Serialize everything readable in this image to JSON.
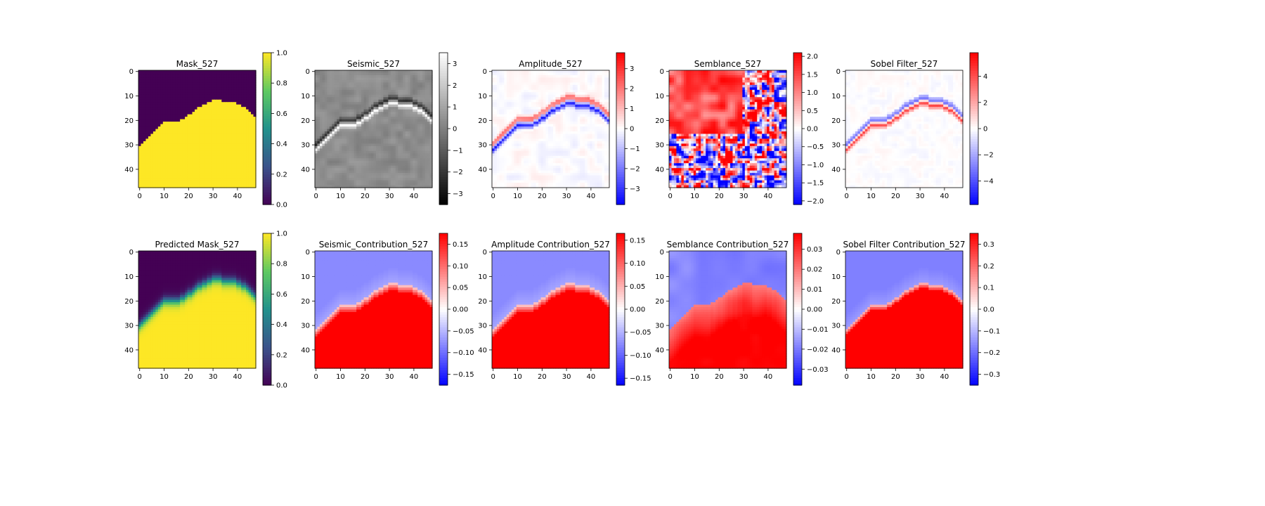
{
  "chart_data": [
    {
      "type": "heatmap",
      "title": "Mask_527",
      "colormap": "viridis",
      "xlim": [
        0,
        47
      ],
      "ylim": [
        0,
        47
      ],
      "xticks": [
        "0",
        "10",
        "20",
        "30",
        "40"
      ],
      "yticks": [
        "0",
        "10",
        "20",
        "30",
        "40"
      ],
      "colorbar": {
        "range": [
          0,
          1
        ],
        "ticks": [
          "0.0",
          "0.2",
          "0.4",
          "0.6",
          "0.8",
          "1.0"
        ]
      },
      "boundary_rows": [
        31,
        30,
        29,
        28,
        27,
        26,
        25,
        24,
        23,
        22,
        21,
        21,
        21,
        21,
        21,
        21,
        21,
        20,
        20,
        19,
        18,
        18,
        17,
        16,
        15,
        15,
        14,
        14,
        13,
        13,
        12,
        12,
        12,
        12,
        13,
        13,
        13,
        13,
        13,
        13,
        14,
        14,
        15,
        15,
        16,
        17,
        18,
        19
      ]
    },
    {
      "type": "heatmap",
      "title": "Seismic_527",
      "colormap": "gray",
      "xlim": [
        0,
        47
      ],
      "ylim": [
        0,
        47
      ],
      "xticks": [
        "0",
        "10",
        "20",
        "30",
        "40"
      ],
      "yticks": [
        "0",
        "10",
        "20",
        "30",
        "40"
      ],
      "colorbar": {
        "range": [
          -3.5,
          3.5
        ],
        "ticks": [
          "−3",
          "−2",
          "−1",
          "0",
          "1",
          "2",
          "3"
        ]
      }
    },
    {
      "type": "heatmap",
      "title": "Amplitude_527",
      "colormap": "bwr",
      "xlim": [
        0,
        47
      ],
      "ylim": [
        0,
        47
      ],
      "xticks": [
        "0",
        "10",
        "20",
        "30",
        "40"
      ],
      "yticks": [
        "0",
        "10",
        "20",
        "30",
        "40"
      ],
      "colorbar": {
        "range": [
          -3.8,
          3.8
        ],
        "ticks": [
          "−3",
          "−2",
          "−1",
          "0",
          "1",
          "2",
          "3"
        ]
      }
    },
    {
      "type": "heatmap",
      "title": "Semblance_527",
      "colormap": "bwr",
      "xlim": [
        0,
        47
      ],
      "ylim": [
        0,
        47
      ],
      "xticks": [
        "0",
        "10",
        "20",
        "30",
        "40"
      ],
      "yticks": [
        "0",
        "10",
        "20",
        "30",
        "40"
      ],
      "colorbar": {
        "range": [
          -2.1,
          2.1
        ],
        "ticks": [
          "−2.0",
          "−1.5",
          "−1.0",
          "−0.5",
          "0.0",
          "0.5",
          "1.0",
          "1.5",
          "2.0"
        ]
      }
    },
    {
      "type": "heatmap",
      "title": "Sobel Filter_527",
      "colormap": "bwr",
      "xlim": [
        0,
        47
      ],
      "ylim": [
        0,
        47
      ],
      "xticks": [
        "0",
        "10",
        "20",
        "30",
        "40"
      ],
      "yticks": [
        "0",
        "10",
        "20",
        "30",
        "40"
      ],
      "colorbar": {
        "range": [
          -5.8,
          5.8
        ],
        "ticks": [
          "−4",
          "−2",
          "0",
          "2",
          "4"
        ]
      }
    },
    {
      "type": "heatmap",
      "title": "Predicted Mask_527",
      "colormap": "viridis",
      "xlim": [
        0,
        47
      ],
      "ylim": [
        0,
        47
      ],
      "xticks": [
        "0",
        "10",
        "20",
        "30",
        "40"
      ],
      "yticks": [
        "0",
        "10",
        "20",
        "30",
        "40"
      ],
      "colorbar": {
        "range": [
          0,
          1
        ],
        "ticks": [
          "0.0",
          "0.2",
          "0.4",
          "0.6",
          "0.8",
          "1.0"
        ]
      }
    },
    {
      "type": "heatmap",
      "title": "Seismic_Contribution_527",
      "colormap": "bwr",
      "xlim": [
        0,
        47
      ],
      "ylim": [
        0,
        47
      ],
      "xticks": [
        "0",
        "10",
        "20",
        "30",
        "40"
      ],
      "yticks": [
        "0",
        "10",
        "20",
        "30",
        "40"
      ],
      "colorbar": {
        "range": [
          -0.175,
          0.175
        ],
        "ticks": [
          "−0.15",
          "−0.10",
          "−0.05",
          "0.00",
          "0.05",
          "0.10",
          "0.15"
        ]
      }
    },
    {
      "type": "heatmap",
      "title": "Amplitude Contribution_527",
      "colormap": "bwr",
      "xlim": [
        0,
        47
      ],
      "ylim": [
        0,
        47
      ],
      "xticks": [
        "0",
        "10",
        "20",
        "30",
        "40"
      ],
      "yticks": [
        "0",
        "10",
        "20",
        "30",
        "40"
      ],
      "colorbar": {
        "range": [
          -0.165,
          0.165
        ],
        "ticks": [
          "−0.15",
          "−0.10",
          "−0.05",
          "0.00",
          "0.05",
          "0.10",
          "0.15"
        ]
      }
    },
    {
      "type": "heatmap",
      "title": "Semblance Contribution_527",
      "colormap": "bwr",
      "xlim": [
        0,
        47
      ],
      "ylim": [
        0,
        47
      ],
      "xticks": [
        "0",
        "10",
        "20",
        "30",
        "40"
      ],
      "yticks": [
        "0",
        "10",
        "20",
        "30",
        "40"
      ],
      "colorbar": {
        "range": [
          -0.038,
          0.038
        ],
        "ticks": [
          "−0.03",
          "−0.02",
          "−0.01",
          "0.00",
          "0.01",
          "0.02",
          "0.03"
        ]
      }
    },
    {
      "type": "heatmap",
      "title": "Sobel Filter Contribution_527",
      "colormap": "bwr",
      "xlim": [
        0,
        47
      ],
      "ylim": [
        0,
        47
      ],
      "xticks": [
        "0",
        "10",
        "20",
        "30",
        "40"
      ],
      "yticks": [
        "0",
        "10",
        "20",
        "30",
        "40"
      ],
      "colorbar": {
        "range": [
          -0.35,
          0.35
        ],
        "ticks": [
          "−0.3",
          "−0.2",
          "−0.1",
          "0.0",
          "0.1",
          "0.2",
          "0.3"
        ]
      }
    }
  ]
}
